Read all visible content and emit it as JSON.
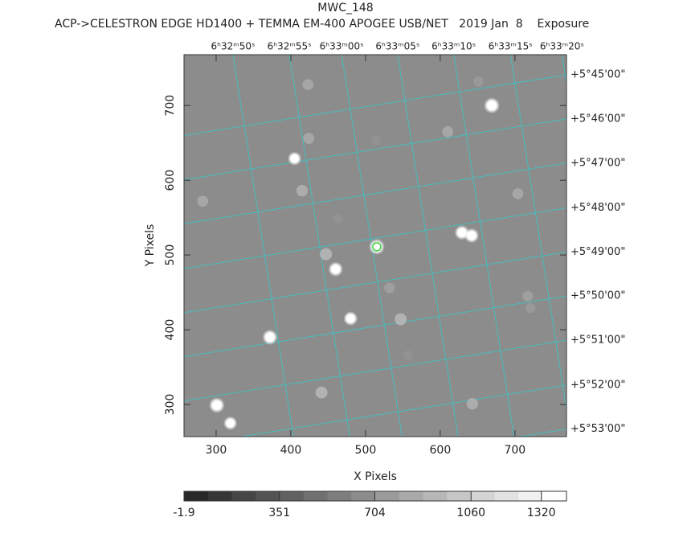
{
  "chart_data": {
    "type": "image",
    "title": "MWC_148",
    "subtitle": "ACP->CELESTRON EDGE HD1400 + TEMMA EM-400 APOGEE USB/NET   2019 Jan  8    Exposure",
    "x_label": "X Pixels",
    "y_label": "Y Pixels",
    "xlim": [
      257,
      769
    ],
    "ylim": [
      257,
      768
    ],
    "xticks": [
      300,
      400,
      500,
      600,
      700
    ],
    "yticks": [
      300,
      400,
      500,
      600,
      700
    ],
    "grid_color": "#37c8c8",
    "grid_rotation": 9,
    "ra_ticks": [
      {
        "value": 322.6,
        "label": "6ʰ32ᵐ50ˢ"
      },
      {
        "value": 398,
        "label": "6ʰ32ᵐ55ˢ"
      },
      {
        "value": 468,
        "label": "6ʰ33ᵐ00ˢ"
      },
      {
        "value": 543,
        "label": "6ʰ33ᵐ05ˢ"
      },
      {
        "value": 618,
        "label": "6ʰ33ᵐ10ˢ"
      },
      {
        "value": 694,
        "label": "6ʰ33ᵐ15ˢ"
      },
      {
        "value": 763,
        "label": "6ʰ33ᵐ20ˢ"
      }
    ],
    "dec_ticks": [
      {
        "value": 741,
        "label": "+5°45'00\""
      },
      {
        "value": 682,
        "label": "+5°46'00\""
      },
      {
        "value": 623,
        "label": "+5°47'00\""
      },
      {
        "value": 563,
        "label": "+5°48'00\""
      },
      {
        "value": 504,
        "label": "+5°49'00\""
      },
      {
        "value": 445,
        "label": "+5°50'00\""
      },
      {
        "value": 386,
        "label": "+5°51'00\""
      },
      {
        "value": 326,
        "label": "+5°52'00\""
      },
      {
        "value": 267,
        "label": "+5°53'00\""
      }
    ],
    "stars": {
      "x": [
        669,
        405,
        515,
        629,
        642,
        460,
        447,
        480,
        372,
        547,
        301,
        319,
        441,
        643,
        415,
        424,
        423,
        610,
        704,
        282,
        532,
        717,
        721,
        651,
        514,
        463,
        557
      ],
      "y": [
        700,
        629,
        511,
        530,
        526,
        481,
        501,
        415,
        390,
        414,
        299,
        275,
        316,
        301,
        586,
        656,
        728,
        665,
        582,
        572,
        456,
        445,
        429,
        732,
        653,
        549,
        366
      ],
      "peak": [
        1320,
        1100,
        1320,
        1200,
        1200,
        1200,
        900,
        1150,
        1250,
        900,
        1300,
        1100,
        900,
        850,
        850,
        800,
        800,
        800,
        800,
        800,
        750,
        750,
        700,
        700,
        650,
        650,
        650
      ]
    },
    "target": {
      "x": 515,
      "y": 511,
      "color": "#22cc22"
    },
    "colorbar": {
      "lim": [
        -1.9,
        1413
      ],
      "ticks": [
        -1.9,
        351,
        704,
        1060,
        1320
      ],
      "steps": 16
    }
  }
}
